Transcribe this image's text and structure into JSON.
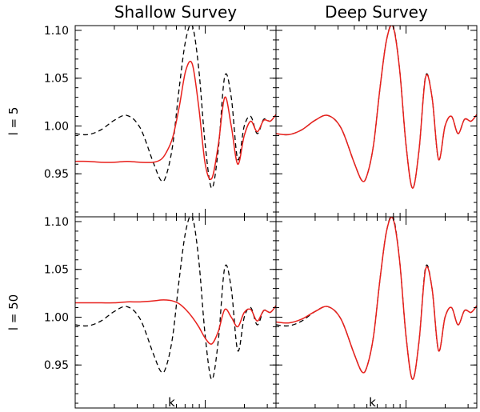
{
  "chart_data": {
    "type": "line",
    "columns": [
      "Shallow Survey",
      "Deep Survey"
    ],
    "rows": [
      "l = 5",
      "l = 50"
    ],
    "xlabel": "k",
    "x_scale": "log",
    "xlim": [
      0.01,
      0.35
    ],
    "x_ticks": [
      {
        "value": 0.01,
        "base": "1d",
        "exp": "-2"
      },
      {
        "value": 0.1,
        "base": "1d",
        "exp": "-1"
      }
    ],
    "ylim": [
      0.905,
      1.105
    ],
    "y_ticks": [
      {
        "value": 0.95,
        "label": "0.95"
      },
      {
        "value": 1.0,
        "label": "1.00"
      },
      {
        "value": 1.05,
        "label": "1.05"
      },
      {
        "value": 1.1,
        "label": "1.10"
      }
    ],
    "series_styles": [
      {
        "role": "reference",
        "color": "#000000",
        "dash": "dashed"
      },
      {
        "role": "recovered",
        "color": "#e8201c",
        "dash": "solid"
      }
    ],
    "panels": [
      {
        "column": "Shallow Survey",
        "row": "l = 5",
        "series": [
          {
            "x": [
              0.01,
              0.0126,
              0.0158,
              0.02,
              0.0251,
              0.0316,
              0.0398,
              0.0457,
              0.05,
              0.0562,
              0.0631,
              0.0708,
              0.0794,
              0.0891,
              0.1,
              0.1122,
              0.1259,
              0.1413,
              0.1585,
              0.1778,
              0.1995,
              0.2239,
              0.2512,
              0.2818,
              0.3162,
              0.35
            ],
            "y": [
              0.992,
              0.991,
              0.996,
              1.006,
              1.011,
              0.998,
              0.962,
              0.943,
              0.948,
              0.98,
              1.04,
              1.09,
              1.105,
              1.06,
              0.98,
              0.935,
              0.975,
              1.052,
              1.03,
              0.965,
              1.0,
              1.01,
              0.992,
              1.007,
              1.005,
              1.012
            ]
          },
          {
            "x": [
              0.01,
              0.0126,
              0.0158,
              0.02,
              0.0251,
              0.0316,
              0.0398,
              0.0457,
              0.05,
              0.0562,
              0.0631,
              0.0708,
              0.0794,
              0.0891,
              0.1,
              0.1122,
              0.1259,
              0.1413,
              0.1585,
              0.1778,
              0.1995,
              0.2239,
              0.2512,
              0.2818,
              0.3162,
              0.35
            ],
            "y": [
              0.963,
              0.963,
              0.962,
              0.962,
              0.963,
              0.962,
              0.962,
              0.965,
              0.972,
              0.988,
              1.02,
              1.058,
              1.065,
              1.02,
              0.96,
              0.945,
              0.98,
              1.03,
              1.0,
              0.96,
              0.99,
              1.005,
              0.994,
              1.006,
              1.005,
              1.012
            ]
          }
        ]
      },
      {
        "column": "Deep Survey",
        "row": "l = 5",
        "series": [
          {
            "x": [
              0.01,
              0.0126,
              0.0158,
              0.02,
              0.0251,
              0.0316,
              0.0398,
              0.0457,
              0.05,
              0.0562,
              0.0631,
              0.0708,
              0.0794,
              0.0891,
              0.1,
              0.1122,
              0.1259,
              0.1413,
              0.1585,
              0.1778,
              0.1995,
              0.2239,
              0.2512,
              0.2818,
              0.3162,
              0.35
            ],
            "y": [
              0.992,
              0.991,
              0.996,
              1.006,
              1.011,
              0.998,
              0.962,
              0.943,
              0.948,
              0.98,
              1.04,
              1.09,
              1.105,
              1.06,
              0.98,
              0.935,
              0.975,
              1.052,
              1.03,
              0.965,
              1.0,
              1.01,
              0.992,
              1.007,
              1.005,
              1.012
            ]
          },
          {
            "x": [
              0.01,
              0.0126,
              0.0158,
              0.02,
              0.0251,
              0.0316,
              0.0398,
              0.0457,
              0.05,
              0.0562,
              0.0631,
              0.0708,
              0.0794,
              0.0891,
              0.1,
              0.1122,
              0.1259,
              0.1413,
              0.1585,
              0.1778,
              0.1995,
              0.2239,
              0.2512,
              0.2818,
              0.3162,
              0.35
            ],
            "y": [
              0.992,
              0.991,
              0.996,
              1.006,
              1.011,
              0.998,
              0.962,
              0.943,
              0.948,
              0.98,
              1.04,
              1.09,
              1.104,
              1.06,
              0.98,
              0.935,
              0.975,
              1.051,
              1.03,
              0.965,
              1.0,
              1.01,
              0.992,
              1.007,
              1.005,
              1.012
            ]
          }
        ]
      },
      {
        "column": "Shallow Survey",
        "row": "l = 50",
        "series": [
          {
            "x": [
              0.01,
              0.0126,
              0.0158,
              0.02,
              0.0251,
              0.0316,
              0.0398,
              0.0457,
              0.05,
              0.0562,
              0.0631,
              0.0708,
              0.0794,
              0.0891,
              0.1,
              0.1122,
              0.1259,
              0.1413,
              0.1585,
              0.1778,
              0.1995,
              0.2239,
              0.2512,
              0.2818,
              0.3162,
              0.35
            ],
            "y": [
              0.992,
              0.991,
              0.996,
              1.006,
              1.011,
              0.998,
              0.962,
              0.943,
              0.948,
              0.98,
              1.04,
              1.09,
              1.105,
              1.06,
              0.98,
              0.935,
              0.975,
              1.052,
              1.03,
              0.965,
              1.0,
              1.01,
              0.992,
              1.007,
              1.005,
              1.012
            ]
          },
          {
            "x": [
              0.01,
              0.0126,
              0.0158,
              0.02,
              0.0251,
              0.0316,
              0.0398,
              0.0457,
              0.05,
              0.0562,
              0.0631,
              0.0708,
              0.0794,
              0.0891,
              0.1,
              0.1122,
              0.1259,
              0.1413,
              0.1585,
              0.1778,
              0.1995,
              0.2239,
              0.2512,
              0.2818,
              0.3162,
              0.35
            ],
            "y": [
              1.015,
              1.015,
              1.015,
              1.015,
              1.016,
              1.016,
              1.017,
              1.018,
              1.018,
              1.017,
              1.014,
              1.008,
              1.0,
              0.99,
              0.978,
              0.972,
              0.985,
              1.008,
              1.0,
              0.99,
              1.005,
              1.008,
              0.996,
              1.007,
              1.005,
              1.012
            ]
          }
        ]
      },
      {
        "column": "Deep Survey",
        "row": "l = 50",
        "series": [
          {
            "x": [
              0.01,
              0.0126,
              0.0158,
              0.02,
              0.0251,
              0.0316,
              0.0398,
              0.0457,
              0.05,
              0.0562,
              0.0631,
              0.0708,
              0.0794,
              0.0891,
              0.1,
              0.1122,
              0.1259,
              0.1413,
              0.1585,
              0.1778,
              0.1995,
              0.2239,
              0.2512,
              0.2818,
              0.3162,
              0.35
            ],
            "y": [
              0.992,
              0.991,
              0.996,
              1.006,
              1.011,
              0.998,
              0.962,
              0.943,
              0.948,
              0.98,
              1.04,
              1.09,
              1.105,
              1.06,
              0.98,
              0.935,
              0.975,
              1.052,
              1.03,
              0.965,
              1.0,
              1.01,
              0.992,
              1.007,
              1.005,
              1.012
            ]
          },
          {
            "x": [
              0.01,
              0.0126,
              0.0158,
              0.02,
              0.0251,
              0.0316,
              0.0398,
              0.0457,
              0.05,
              0.0562,
              0.0631,
              0.0708,
              0.0794,
              0.0891,
              0.1,
              0.1122,
              0.1259,
              0.1413,
              0.1585,
              0.1778,
              0.1995,
              0.2239,
              0.2512,
              0.2818,
              0.3162,
              0.35
            ],
            "y": [
              0.995,
              0.994,
              0.998,
              1.006,
              1.011,
              0.998,
              0.962,
              0.943,
              0.948,
              0.98,
              1.04,
              1.09,
              1.103,
              1.06,
              0.98,
              0.935,
              0.975,
              1.05,
              1.03,
              0.965,
              1.0,
              1.01,
              0.992,
              1.007,
              1.005,
              1.012
            ]
          }
        ]
      }
    ]
  }
}
